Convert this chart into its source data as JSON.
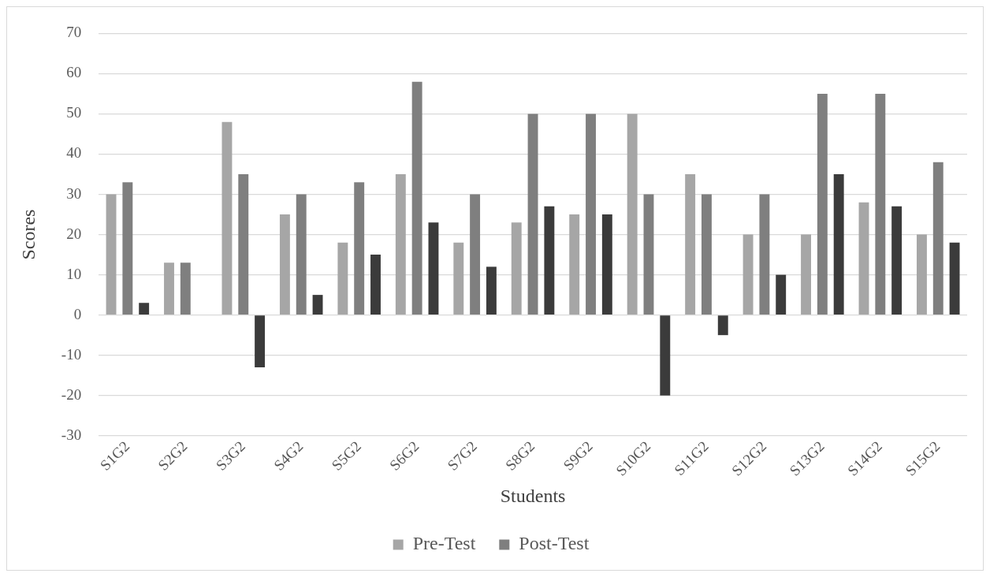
{
  "chart_data": {
    "type": "bar",
    "xlabel": "Students",
    "ylabel": "Scores",
    "categories": [
      "S1G2",
      "S2G2",
      "S3G2",
      "S4G2",
      "S5G2",
      "S6G2",
      "S7G2",
      "S8G2",
      "S9G2",
      "S10G2",
      "S11G2",
      "S12G2",
      "S13G2",
      "S14G2",
      "S15G2"
    ],
    "series": [
      {
        "name": "Pre-Test",
        "color": "#a6a6a6",
        "values": [
          30,
          13,
          48,
          25,
          18,
          35,
          18,
          23,
          25,
          50,
          35,
          20,
          20,
          28,
          20
        ]
      },
      {
        "name": "Post-Test",
        "color": "#7f7f7f",
        "values": [
          33,
          13,
          35,
          30,
          33,
          58,
          30,
          50,
          50,
          30,
          30,
          30,
          55,
          55,
          38
        ]
      },
      {
        "color": "#3b3b3b",
        "values": [
          3,
          0,
          -13,
          5,
          15,
          23,
          12,
          27,
          25,
          -20,
          -5,
          10,
          35,
          27,
          18
        ]
      }
    ],
    "ylim": [
      -30,
      70
    ],
    "yticks": [
      -30,
      -20,
      -10,
      0,
      10,
      20,
      30,
      40,
      50,
      60,
      70
    ],
    "grid": "y",
    "legend": "bottom"
  }
}
